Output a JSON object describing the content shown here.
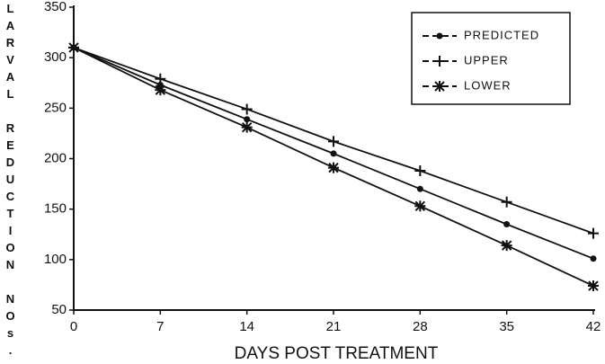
{
  "chart_data": {
    "type": "line",
    "x_label": "DAYS POST TREATMENT",
    "y_label": "LARVAL REDUCTION NOs.",
    "x": [
      0,
      7,
      14,
      21,
      28,
      35,
      42
    ],
    "xlim": [
      0,
      42
    ],
    "xticks": [
      0,
      7,
      14,
      21,
      28,
      35,
      42
    ],
    "ylim": [
      50,
      350
    ],
    "yticks": [
      50,
      100,
      150,
      200,
      250,
      300,
      350
    ],
    "legend": "upper right",
    "series": [
      {
        "name": "PREDICTED",
        "color": "#111111",
        "marker": "dot",
        "values": [
          310,
          273,
          239,
          205,
          170,
          135,
          101
        ]
      },
      {
        "name": "UPPER",
        "color": "#111111",
        "marker": "plus",
        "values": [
          310,
          279,
          249,
          217,
          188,
          157,
          126
        ]
      },
      {
        "name": "LOWER",
        "color": "#111111",
        "marker": "star",
        "values": [
          310,
          268,
          231,
          191,
          153,
          114,
          74
        ]
      }
    ]
  }
}
